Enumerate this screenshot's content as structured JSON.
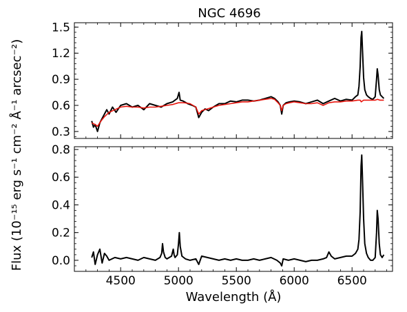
{
  "chart_data": [
    {
      "type": "line",
      "title": "NGC 4696",
      "ylabel": "Flux (10⁻¹⁵ erg s⁻¹ cm⁻² Å⁻¹ arcsec⁻²)",
      "xlim": [
        4100,
        6850
      ],
      "ylim": [
        0.22,
        1.55
      ],
      "yticks": [
        0.3,
        0.6,
        0.9,
        1.2,
        1.5
      ],
      "ytick_labels": [
        "0.3",
        "0.6",
        "0.9",
        "1.2",
        "1.5"
      ],
      "xticks": [
        4500,
        5000,
        5500,
        6000,
        6500
      ],
      "grid": false,
      "series": [
        {
          "color": "#000000",
          "x": [
            4250,
            4265,
            4280,
            4300,
            4320,
            4340,
            4360,
            4380,
            4400,
            4430,
            4460,
            4500,
            4550,
            4600,
            4650,
            4700,
            4750,
            4800,
            4850,
            4900,
            4950,
            4990,
            5005,
            5015,
            5040,
            5080,
            5120,
            5150,
            5175,
            5200,
            5230,
            5260,
            5300,
            5350,
            5400,
            5450,
            5500,
            5550,
            5600,
            5650,
            5700,
            5750,
            5800,
            5830,
            5860,
            5880,
            5892,
            5905,
            5930,
            5960,
            6000,
            6050,
            6100,
            6150,
            6200,
            6250,
            6300,
            6350,
            6400,
            6450,
            6500,
            6530,
            6550,
            6560,
            6570,
            6578,
            6584,
            6590,
            6600,
            6610,
            6625,
            6640,
            6660,
            6680,
            6700,
            6712,
            6718,
            6725,
            6735,
            6745,
            6760,
            6775
          ],
          "y": [
            0.42,
            0.35,
            0.38,
            0.3,
            0.4,
            0.45,
            0.5,
            0.55,
            0.5,
            0.58,
            0.52,
            0.6,
            0.62,
            0.58,
            0.6,
            0.55,
            0.62,
            0.6,
            0.58,
            0.62,
            0.64,
            0.68,
            0.75,
            0.66,
            0.65,
            0.62,
            0.6,
            0.58,
            0.46,
            0.52,
            0.56,
            0.54,
            0.58,
            0.62,
            0.62,
            0.65,
            0.64,
            0.66,
            0.66,
            0.65,
            0.66,
            0.68,
            0.7,
            0.68,
            0.64,
            0.6,
            0.5,
            0.6,
            0.63,
            0.64,
            0.65,
            0.64,
            0.62,
            0.64,
            0.66,
            0.62,
            0.65,
            0.68,
            0.65,
            0.67,
            0.66,
            0.7,
            0.72,
            0.82,
            1.05,
            1.38,
            1.45,
            1.25,
            0.92,
            0.78,
            0.72,
            0.7,
            0.68,
            0.67,
            0.7,
            0.9,
            1.02,
            0.95,
            0.78,
            0.72,
            0.7,
            0.68
          ]
        },
        {
          "color": "#e8140c",
          "x": [
            4250,
            4280,
            4300,
            4330,
            4360,
            4400,
            4450,
            4500,
            4550,
            4600,
            4650,
            4700,
            4750,
            4800,
            4850,
            4900,
            4950,
            5000,
            5050,
            5100,
            5150,
            5175,
            5200,
            5250,
            5300,
            5350,
            5400,
            5450,
            5500,
            5550,
            5600,
            5650,
            5700,
            5750,
            5800,
            5830,
            5860,
            5880,
            5892,
            5905,
            5930,
            5960,
            6000,
            6050,
            6100,
            6150,
            6200,
            6250,
            6300,
            6350,
            6400,
            6450,
            6500,
            6550,
            6570,
            6580,
            6600,
            6650,
            6700,
            6720,
            6740,
            6775
          ],
          "y": [
            0.4,
            0.38,
            0.36,
            0.42,
            0.47,
            0.52,
            0.55,
            0.58,
            0.59,
            0.58,
            0.58,
            0.57,
            0.58,
            0.58,
            0.59,
            0.6,
            0.61,
            0.63,
            0.63,
            0.62,
            0.58,
            0.5,
            0.54,
            0.56,
            0.58,
            0.6,
            0.61,
            0.62,
            0.63,
            0.64,
            0.64,
            0.65,
            0.66,
            0.67,
            0.68,
            0.67,
            0.63,
            0.6,
            0.54,
            0.6,
            0.62,
            0.63,
            0.64,
            0.63,
            0.62,
            0.62,
            0.63,
            0.6,
            0.63,
            0.64,
            0.64,
            0.65,
            0.65,
            0.66,
            0.66,
            0.64,
            0.66,
            0.66,
            0.66,
            0.67,
            0.66,
            0.66
          ]
        }
      ]
    },
    {
      "type": "line",
      "xlabel": "Wavelength (Å)",
      "xlim": [
        4100,
        6850
      ],
      "ylim": [
        -0.08,
        0.82
      ],
      "yticks": [
        0.0,
        0.2,
        0.4,
        0.6,
        0.8
      ],
      "ytick_labels": [
        "0.0",
        "0.2",
        "0.4",
        "0.6",
        "0.8"
      ],
      "xticks": [
        4500,
        5000,
        5500,
        6000,
        6500
      ],
      "xtick_labels": [
        "4500",
        "5000",
        "5500",
        "6000",
        "6500"
      ],
      "grid": false,
      "series": [
        {
          "color": "#000000",
          "x": [
            4250,
            4265,
            4280,
            4300,
            4320,
            4340,
            4360,
            4380,
            4400,
            4450,
            4500,
            4550,
            4600,
            4650,
            4700,
            4750,
            4800,
            4840,
            4855,
            4862,
            4870,
            4885,
            4900,
            4940,
            4955,
            4962,
            4970,
            4990,
            5000,
            5007,
            5015,
            5030,
            5060,
            5100,
            5150,
            5175,
            5200,
            5250,
            5300,
            5350,
            5400,
            5450,
            5500,
            5550,
            5600,
            5650,
            5700,
            5750,
            5800,
            5850,
            5880,
            5892,
            5905,
            5950,
            6000,
            6050,
            6100,
            6150,
            6200,
            6250,
            6280,
            6300,
            6320,
            6350,
            6400,
            6450,
            6500,
            6530,
            6550,
            6560,
            6570,
            6578,
            6584,
            6590,
            6600,
            6610,
            6625,
            6640,
            6660,
            6680,
            6700,
            6712,
            6718,
            6725,
            6735,
            6745,
            6760,
            6775
          ],
          "y": [
            0.02,
            0.06,
            -0.03,
            0.04,
            0.08,
            -0.02,
            0.05,
            0.03,
            0.0,
            0.02,
            0.01,
            0.02,
            0.01,
            0.0,
            0.02,
            0.01,
            0.0,
            0.02,
            0.05,
            0.12,
            0.06,
            0.02,
            0.01,
            0.03,
            0.08,
            0.04,
            0.02,
            0.04,
            0.12,
            0.2,
            0.1,
            0.03,
            0.01,
            0.0,
            0.01,
            -0.03,
            0.03,
            0.02,
            0.01,
            0.0,
            0.01,
            0.0,
            0.01,
            0.0,
            0.0,
            0.01,
            0.0,
            0.01,
            0.02,
            0.0,
            -0.02,
            -0.04,
            0.01,
            0.0,
            0.01,
            0.0,
            -0.01,
            0.0,
            0.0,
            0.01,
            0.02,
            0.06,
            0.03,
            0.01,
            0.02,
            0.03,
            0.03,
            0.05,
            0.08,
            0.15,
            0.35,
            0.68,
            0.76,
            0.6,
            0.3,
            0.12,
            0.05,
            0.02,
            0.0,
            0.0,
            0.02,
            0.2,
            0.36,
            0.3,
            0.12,
            0.04,
            0.02,
            0.04
          ]
        }
      ]
    }
  ]
}
